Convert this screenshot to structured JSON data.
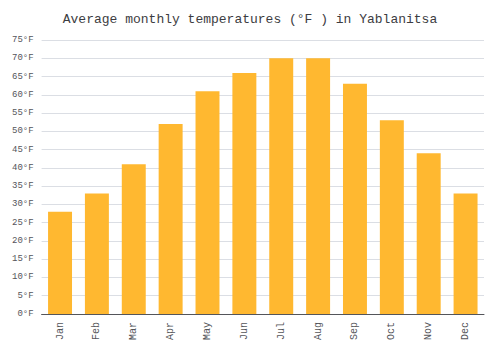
{
  "chart_data": {
    "type": "bar",
    "title": "Average monthly temperatures (°F ) in Yablanitsa",
    "categories": [
      "Jan",
      "Feb",
      "Mar",
      "Apr",
      "May",
      "Jun",
      "Jul",
      "Aug",
      "Sep",
      "Oct",
      "Nov",
      "Dec"
    ],
    "values": [
      28,
      33,
      41,
      52,
      61,
      66,
      70,
      70,
      63,
      53,
      44,
      33
    ],
    "color": "#FFB830",
    "ylim": [
      0,
      75
    ],
    "yticks": [
      {
        "value": 0,
        "label": "0°F"
      },
      {
        "value": 5,
        "label": "5°F"
      },
      {
        "value": 10,
        "label": "10°F"
      },
      {
        "value": 15,
        "label": "15°F"
      },
      {
        "value": 20,
        "label": "20°F"
      },
      {
        "value": 25,
        "label": "25°F"
      },
      {
        "value": 30,
        "label": "30°F"
      },
      {
        "value": 35,
        "label": "35°F"
      },
      {
        "value": 40,
        "label": "40°F"
      },
      {
        "value": 45,
        "label": "45°F"
      },
      {
        "value": 50,
        "label": "50°F"
      },
      {
        "value": 55,
        "label": "55°F"
      },
      {
        "value": 60,
        "label": "60°F"
      },
      {
        "value": 65,
        "label": "65°F"
      },
      {
        "value": 70,
        "label": "70°F"
      },
      {
        "value": 75,
        "label": "75°F"
      }
    ],
    "grid": true
  }
}
